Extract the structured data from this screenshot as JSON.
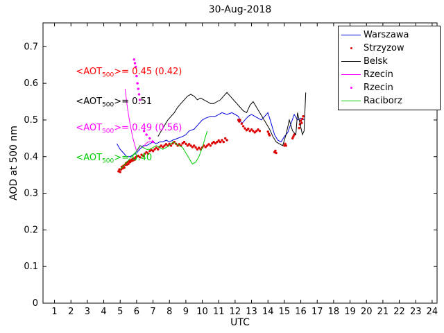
{
  "chart_data": {
    "type": "line",
    "title": "30-Aug-2018",
    "xlabel": "UTC",
    "ylabel": "AOD at 500 nm",
    "xlim": [
      0.3,
      24.3
    ],
    "ylim": [
      0,
      0.765
    ],
    "xticks": [
      1,
      2,
      3,
      4,
      5,
      6,
      7,
      8,
      9,
      10,
      11,
      12,
      13,
      14,
      15,
      16,
      17,
      18,
      19,
      20,
      21,
      22,
      23,
      24
    ],
    "yticks": [
      0,
      0.1,
      0.2,
      0.3,
      0.4,
      0.5,
      0.6,
      0.7
    ],
    "ytick_labels": [
      "0",
      "0.1",
      "0.2",
      "0.3",
      "0.4",
      "0.5",
      "0.6",
      "0.7"
    ],
    "grid": false,
    "legend_position": "top-right",
    "series": [
      {
        "name": "Warszawa",
        "style": "line",
        "color": "#0000dd",
        "points": [
          [
            4.8,
            0.435
          ],
          [
            5.0,
            0.42
          ],
          [
            5.2,
            0.41
          ],
          [
            5.4,
            0.4
          ],
          [
            5.6,
            0.4
          ],
          [
            5.8,
            0.405
          ],
          [
            6.0,
            0.41
          ],
          [
            6.2,
            0.42
          ],
          [
            6.4,
            0.43
          ],
          [
            6.6,
            0.43
          ],
          [
            6.8,
            0.435
          ],
          [
            7.0,
            0.44
          ],
          [
            7.2,
            0.435
          ],
          [
            7.4,
            0.44
          ],
          [
            7.6,
            0.44
          ],
          [
            7.8,
            0.445
          ],
          [
            8.0,
            0.44
          ],
          [
            8.2,
            0.445
          ],
          [
            8.5,
            0.45
          ],
          [
            8.8,
            0.455
          ],
          [
            9.0,
            0.46
          ],
          [
            9.2,
            0.47
          ],
          [
            9.5,
            0.475
          ],
          [
            9.8,
            0.49
          ],
          [
            10.0,
            0.5
          ],
          [
            10.2,
            0.505
          ],
          [
            10.5,
            0.51
          ],
          [
            10.8,
            0.51
          ],
          [
            11.0,
            0.515
          ],
          [
            11.2,
            0.52
          ],
          [
            11.5,
            0.515
          ],
          [
            11.8,
            0.52
          ],
          [
            12.0,
            0.515
          ],
          [
            12.2,
            0.51
          ],
          [
            12.4,
            0.49
          ],
          [
            12.6,
            0.5
          ],
          [
            12.8,
            0.51
          ],
          [
            13.0,
            0.515
          ],
          [
            13.2,
            0.51
          ],
          [
            13.4,
            0.505
          ],
          [
            13.6,
            0.5
          ],
          [
            13.8,
            0.51
          ],
          [
            14.0,
            0.52
          ],
          [
            14.2,
            0.49
          ],
          [
            14.4,
            0.46
          ],
          [
            14.6,
            0.445
          ],
          [
            14.8,
            0.44
          ],
          [
            15.0,
            0.455
          ],
          [
            15.2,
            0.465
          ],
          [
            15.4,
            0.49
          ],
          [
            15.6,
            0.515
          ],
          [
            15.8,
            0.5
          ],
          [
            16.0,
            0.505
          ],
          [
            16.2,
            0.5
          ]
        ]
      },
      {
        "name": "Strzyzow",
        "style": "scatter",
        "color": "#dd0000",
        "points": [
          [
            4.9,
            0.36
          ],
          [
            4.95,
            0.365
          ],
          [
            5.0,
            0.358
          ],
          [
            5.05,
            0.365
          ],
          [
            5.1,
            0.372
          ],
          [
            5.15,
            0.368
          ],
          [
            5.2,
            0.375
          ],
          [
            5.25,
            0.37
          ],
          [
            5.3,
            0.378
          ],
          [
            5.35,
            0.382
          ],
          [
            5.4,
            0.378
          ],
          [
            5.45,
            0.385
          ],
          [
            5.5,
            0.38
          ],
          [
            5.55,
            0.388
          ],
          [
            5.6,
            0.385
          ],
          [
            5.65,
            0.39
          ],
          [
            5.7,
            0.388
          ],
          [
            5.75,
            0.393
          ],
          [
            5.8,
            0.39
          ],
          [
            5.85,
            0.395
          ],
          [
            5.9,
            0.392
          ],
          [
            5.95,
            0.398
          ],
          [
            6.0,
            0.4
          ],
          [
            6.1,
            0.402
          ],
          [
            6.2,
            0.398
          ],
          [
            6.3,
            0.405
          ],
          [
            6.4,
            0.402
          ],
          [
            6.5,
            0.408
          ],
          [
            6.6,
            0.412
          ],
          [
            6.7,
            0.408
          ],
          [
            6.8,
            0.415
          ],
          [
            6.9,
            0.418
          ],
          [
            7.0,
            0.415
          ],
          [
            7.1,
            0.42
          ],
          [
            7.2,
            0.424
          ],
          [
            7.3,
            0.42
          ],
          [
            7.4,
            0.426
          ],
          [
            7.5,
            0.43
          ],
          [
            7.6,
            0.426
          ],
          [
            7.7,
            0.43
          ],
          [
            7.8,
            0.434
          ],
          [
            7.9,
            0.43
          ],
          [
            8.0,
            0.435
          ],
          [
            8.1,
            0.43
          ],
          [
            8.2,
            0.436
          ],
          [
            8.3,
            0.44
          ],
          [
            8.4,
            0.435
          ],
          [
            8.5,
            0.43
          ],
          [
            8.6,
            0.434
          ],
          [
            8.7,
            0.43
          ],
          [
            8.8,
            0.436
          ],
          [
            8.9,
            0.44
          ],
          [
            9.0,
            0.435
          ],
          [
            9.1,
            0.43
          ],
          [
            9.2,
            0.434
          ],
          [
            9.3,
            0.43
          ],
          [
            9.4,
            0.426
          ],
          [
            9.5,
            0.43
          ],
          [
            9.6,
            0.425
          ],
          [
            9.7,
            0.42
          ],
          [
            9.8,
            0.424
          ],
          [
            9.9,
            0.42
          ],
          [
            10.0,
            0.425
          ],
          [
            10.1,
            0.43
          ],
          [
            10.2,
            0.426
          ],
          [
            10.3,
            0.43
          ],
          [
            10.4,
            0.434
          ],
          [
            10.5,
            0.43
          ],
          [
            10.6,
            0.436
          ],
          [
            10.7,
            0.44
          ],
          [
            10.8,
            0.436
          ],
          [
            10.9,
            0.44
          ],
          [
            11.0,
            0.444
          ],
          [
            11.1,
            0.44
          ],
          [
            11.2,
            0.445
          ],
          [
            11.3,
            0.44
          ],
          [
            11.4,
            0.45
          ],
          [
            11.5,
            0.445
          ],
          [
            12.2,
            0.5
          ],
          [
            12.25,
            0.496
          ],
          [
            12.3,
            0.5
          ],
          [
            12.4,
            0.49
          ],
          [
            12.5,
            0.483
          ],
          [
            12.6,
            0.477
          ],
          [
            12.7,
            0.472
          ],
          [
            12.8,
            0.476
          ],
          [
            12.9,
            0.47
          ],
          [
            13.0,
            0.474
          ],
          [
            13.1,
            0.47
          ],
          [
            13.2,
            0.466
          ],
          [
            13.3,
            0.47
          ],
          [
            13.4,
            0.474
          ],
          [
            13.5,
            0.47
          ],
          [
            14.0,
            0.468
          ],
          [
            14.05,
            0.462
          ],
          [
            14.1,
            0.458
          ],
          [
            14.4,
            0.412
          ],
          [
            14.45,
            0.416
          ],
          [
            14.5,
            0.41
          ],
          [
            15.0,
            0.43
          ],
          [
            15.05,
            0.435
          ],
          [
            15.1,
            0.43
          ],
          [
            15.5,
            0.45
          ],
          [
            15.55,
            0.455
          ],
          [
            15.6,
            0.46
          ],
          [
            15.9,
            0.478
          ],
          [
            15.95,
            0.488
          ],
          [
            16.0,
            0.498
          ],
          [
            16.05,
            0.492
          ],
          [
            16.1,
            0.503
          ],
          [
            16.15,
            0.51
          ]
        ]
      },
      {
        "name": "Belsk",
        "style": "line",
        "color": "#000000",
        "points": [
          [
            7.3,
            0.455
          ],
          [
            7.5,
            0.47
          ],
          [
            7.7,
            0.485
          ],
          [
            7.9,
            0.5
          ],
          [
            8.1,
            0.51
          ],
          [
            8.3,
            0.52
          ],
          [
            8.5,
            0.535
          ],
          [
            8.7,
            0.545
          ],
          [
            8.9,
            0.555
          ],
          [
            9.1,
            0.565
          ],
          [
            9.3,
            0.57
          ],
          [
            9.5,
            0.565
          ],
          [
            9.7,
            0.555
          ],
          [
            9.9,
            0.56
          ],
          [
            10.1,
            0.555
          ],
          [
            10.3,
            0.55
          ],
          [
            10.5,
            0.545
          ],
          [
            10.7,
            0.545
          ],
          [
            10.9,
            0.55
          ],
          [
            11.1,
            0.555
          ],
          [
            11.3,
            0.565
          ],
          [
            11.5,
            0.575
          ],
          [
            11.7,
            0.565
          ],
          [
            11.9,
            0.555
          ],
          [
            12.1,
            0.545
          ],
          [
            12.3,
            0.535
          ],
          [
            12.5,
            0.525
          ],
          [
            12.7,
            0.52
          ],
          [
            12.9,
            0.54
          ],
          [
            13.1,
            0.55
          ],
          [
            13.3,
            0.535
          ],
          [
            13.5,
            0.52
          ],
          [
            13.7,
            0.505
          ],
          [
            13.9,
            0.49
          ],
          [
            14.1,
            0.475
          ],
          [
            14.3,
            0.455
          ],
          [
            14.5,
            0.44
          ],
          [
            14.7,
            0.435
          ],
          [
            14.9,
            0.43
          ],
          [
            15.1,
            0.46
          ],
          [
            15.3,
            0.5
          ],
          [
            15.5,
            0.47
          ],
          [
            15.7,
            0.46
          ],
          [
            15.8,
            0.52
          ],
          [
            15.9,
            0.5
          ],
          [
            16.0,
            0.48
          ],
          [
            16.1,
            0.46
          ],
          [
            16.2,
            0.47
          ],
          [
            16.3,
            0.575
          ]
        ]
      },
      {
        "name": "Rzecin",
        "style": "line",
        "color": "#ff00ff",
        "points": [
          [
            5.3,
            0.585
          ],
          [
            5.45,
            0.53
          ],
          [
            5.6,
            0.49
          ],
          [
            5.75,
            0.455
          ],
          [
            5.9,
            0.43
          ],
          [
            6.0,
            0.415
          ],
          [
            6.1,
            0.42
          ],
          [
            6.25,
            0.43
          ],
          [
            6.4,
            0.425
          ],
          [
            6.55,
            0.435
          ],
          [
            6.7,
            0.44
          ],
          [
            6.85,
            0.44
          ],
          [
            7.0,
            0.445
          ]
        ]
      },
      {
        "name": "Rzecin",
        "style": "scatter",
        "color": "#ff00ff",
        "points": [
          [
            5.85,
            0.665
          ],
          [
            5.9,
            0.655
          ],
          [
            5.95,
            0.645
          ],
          [
            6.0,
            0.62
          ],
          [
            6.05,
            0.6
          ],
          [
            6.1,
            0.585
          ],
          [
            6.15,
            0.57
          ],
          [
            6.2,
            0.555
          ],
          [
            6.45,
            0.47
          ],
          [
            6.6,
            0.46
          ],
          [
            6.8,
            0.45
          ],
          [
            7.0,
            0.44
          ]
        ]
      },
      {
        "name": "Raciborz",
        "style": "line",
        "color": "#00cc00",
        "points": [
          [
            5.0,
            0.365
          ],
          [
            5.2,
            0.375
          ],
          [
            5.4,
            0.385
          ],
          [
            5.6,
            0.395
          ],
          [
            5.8,
            0.405
          ],
          [
            6.0,
            0.415
          ],
          [
            6.2,
            0.43
          ],
          [
            6.4,
            0.425
          ],
          [
            6.6,
            0.42
          ],
          [
            6.8,
            0.42
          ],
          [
            7.0,
            0.425
          ],
          [
            7.2,
            0.43
          ],
          [
            7.4,
            0.425
          ],
          [
            7.6,
            0.42
          ],
          [
            7.8,
            0.425
          ],
          [
            8.0,
            0.43
          ],
          [
            8.2,
            0.44
          ],
          [
            8.4,
            0.435
          ],
          [
            8.6,
            0.43
          ],
          [
            8.8,
            0.425
          ],
          [
            9.0,
            0.41
          ],
          [
            9.2,
            0.395
          ],
          [
            9.4,
            0.38
          ],
          [
            9.6,
            0.385
          ],
          [
            9.8,
            0.4
          ],
          [
            10.0,
            0.425
          ],
          [
            10.2,
            0.455
          ],
          [
            10.3,
            0.47
          ]
        ]
      }
    ],
    "annotations": [
      {
        "pre": "<AOT",
        "sub": "500",
        "post": ">= 0.45 (0.42)",
        "color": "#ff0000",
        "x": 2.3,
        "y": 0.63
      },
      {
        "pre": "<AOT",
        "sub": "500",
        "post": ">= 0.51",
        "color": "#000000",
        "x": 2.3,
        "y": 0.55
      },
      {
        "pre": "<AOT",
        "sub": "500",
        "post": ">= 0.49 (0.56)",
        "color": "#ff00ff",
        "x": 2.3,
        "y": 0.477
      },
      {
        "pre": "<AOT",
        "sub": "500",
        "post": ">= 0.40",
        "color": "#00cc00",
        "x": 2.3,
        "y": 0.396
      }
    ],
    "legend": {
      "entries": [
        {
          "label": "Warszawa",
          "style": "line",
          "color": "#0000dd"
        },
        {
          "label": "Strzyzow",
          "style": "scatter",
          "color": "#dd0000"
        },
        {
          "label": "Belsk",
          "style": "line",
          "color": "#000000"
        },
        {
          "label": "Rzecin",
          "style": "line",
          "color": "#ff00ff"
        },
        {
          "label": "Rzecin",
          "style": "scatter",
          "color": "#ff00ff"
        },
        {
          "label": "Raciborz",
          "style": "line",
          "color": "#00cc00"
        }
      ]
    }
  }
}
